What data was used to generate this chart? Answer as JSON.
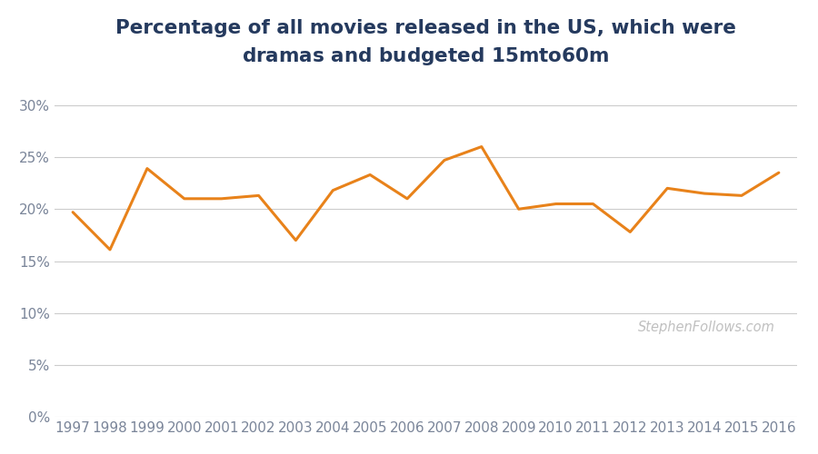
{
  "title_line1": "Percentage of all movies released in the US, which were",
  "title_line2": "dramas and budgeted $15m to $60m",
  "years": [
    1997,
    1998,
    1999,
    2000,
    2001,
    2002,
    2003,
    2004,
    2005,
    2006,
    2007,
    2008,
    2009,
    2010,
    2011,
    2012,
    2013,
    2014,
    2015,
    2016
  ],
  "values": [
    0.197,
    0.161,
    0.239,
    0.21,
    0.21,
    0.213,
    0.17,
    0.218,
    0.233,
    0.21,
    0.247,
    0.26,
    0.2,
    0.205,
    0.205,
    0.178,
    0.22,
    0.215,
    0.213,
    0.235
  ],
  "line_color": "#E8821A",
  "line_width": 2.2,
  "background_color": "#ffffff",
  "grid_color": "#cccccc",
  "title_color": "#253a5e",
  "tick_label_color": "#7a8599",
  "watermark_text": "StephenFollows.com",
  "watermark_color": "#c0c0c0",
  "ylim": [
    0.0,
    0.32
  ],
  "yticks": [
    0.0,
    0.05,
    0.1,
    0.15,
    0.2,
    0.25,
    0.3
  ],
  "title_fontsize": 15.5,
  "tick_fontsize": 11
}
